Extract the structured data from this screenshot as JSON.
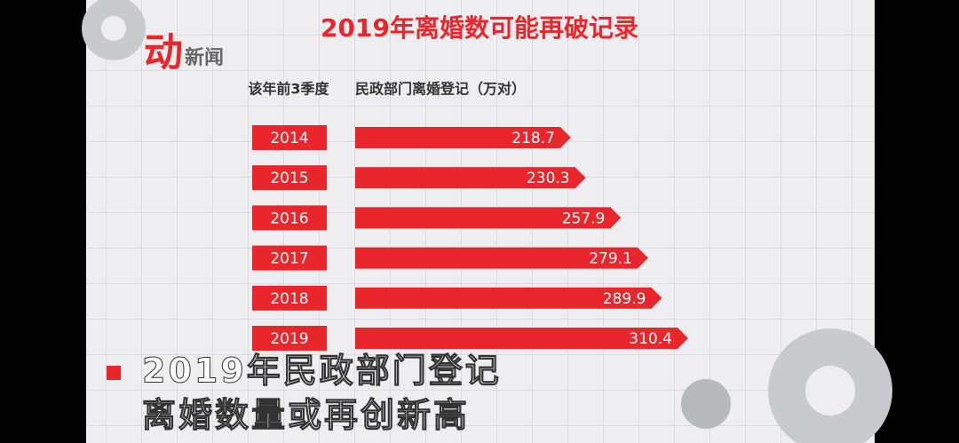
{
  "logo": {
    "main": "动",
    "sub": "新闻"
  },
  "chart_data": {
    "type": "bar",
    "orientation": "horizontal",
    "title": "2019年离婚数可能再破记录",
    "category_header": "该年前3季度",
    "value_header": "民政部门离婚登记（万对）",
    "categories": [
      "2014",
      "2015",
      "2016",
      "2017",
      "2018",
      "2019"
    ],
    "values": [
      218.7,
      230.3,
      257.9,
      279.1,
      289.9,
      310.4
    ],
    "color": "#e8262b"
  },
  "caption": [
    "2019年民政部门登记",
    "离婚数量或再创新高"
  ]
}
